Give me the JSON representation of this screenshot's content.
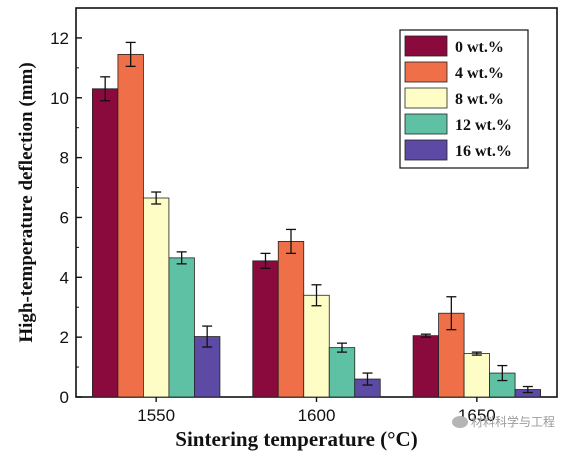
{
  "chart_data": {
    "type": "bar",
    "title": "",
    "xlabel": "Sintering temperature (°C)",
    "ylabel": "High-temperature deflection (mm)",
    "categories": [
      "1550",
      "1600",
      "1650"
    ],
    "ylim": [
      0,
      13
    ],
    "yticks": [
      0,
      2,
      4,
      6,
      8,
      10,
      12
    ],
    "legend_position": "top-right",
    "series": [
      {
        "name": "0 wt.%",
        "color": "#8b0a3e",
        "values": [
          10.3,
          4.55,
          2.05
        ],
        "errors": [
          0.4,
          0.25,
          0.05
        ]
      },
      {
        "name": "4 wt.%",
        "color": "#ef7048",
        "values": [
          11.45,
          5.2,
          2.8
        ],
        "errors": [
          0.4,
          0.4,
          0.55
        ]
      },
      {
        "name": "8 wt.%",
        "color": "#fefdc6",
        "values": [
          6.65,
          3.4,
          1.45
        ],
        "errors": [
          0.2,
          0.35,
          0.05
        ]
      },
      {
        "name": "12 wt.%",
        "color": "#5fc1a3",
        "values": [
          4.65,
          1.65,
          0.8
        ],
        "errors": [
          0.2,
          0.15,
          0.25
        ]
      },
      {
        "name": "16 wt.%",
        "color": "#5d4aa5",
        "values": [
          2.02,
          0.6,
          0.25
        ],
        "errors": [
          0.35,
          0.2,
          0.1
        ]
      }
    ]
  },
  "watermark": {
    "text": "材料科学与工程",
    "icon": "wechat-icon"
  }
}
